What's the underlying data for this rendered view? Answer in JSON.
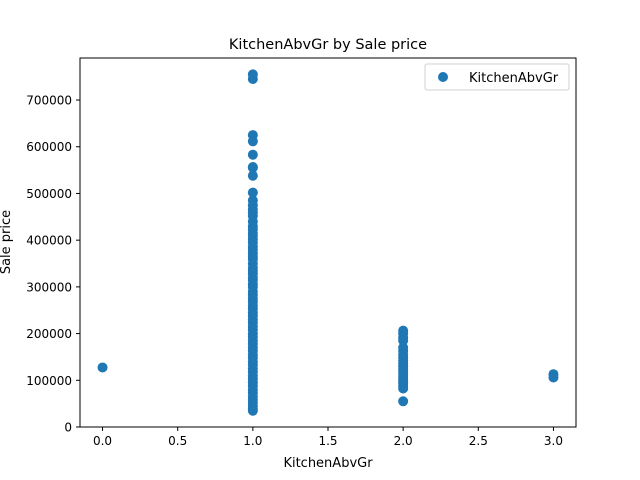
{
  "chart_data": {
    "type": "scatter",
    "title": "KitchenAbvGr by Sale price",
    "xlabel": "KitchenAbvGr",
    "ylabel": "Sale price",
    "xlim": [
      -0.15,
      3.15
    ],
    "ylim": [
      0,
      790000
    ],
    "xticks": [
      0.0,
      0.5,
      1.0,
      1.5,
      2.0,
      2.5,
      3.0
    ],
    "xtick_labels": [
      "0.0",
      "0.5",
      "1.0",
      "1.5",
      "2.0",
      "2.5",
      "3.0"
    ],
    "yticks": [
      0,
      100000,
      200000,
      300000,
      400000,
      500000,
      600000,
      700000
    ],
    "ytick_labels": [
      "0",
      "100000",
      "200000",
      "300000",
      "400000",
      "500000",
      "600000",
      "700000"
    ],
    "grid": false,
    "legend_position": "top-right",
    "series": [
      {
        "name": "KitchenAbvGr",
        "color": "#1f77b4",
        "points": [
          {
            "x": 0,
            "y": 127500
          },
          {
            "x": 1,
            "y": 755000
          },
          {
            "x": 1,
            "y": 745000
          },
          {
            "x": 1,
            "y": 625000
          },
          {
            "x": 1,
            "y": 611657
          },
          {
            "x": 1,
            "y": 582933
          },
          {
            "x": 1,
            "y": 556581
          },
          {
            "x": 1,
            "y": 555000
          },
          {
            "x": 1,
            "y": 538000
          },
          {
            "x": 1,
            "y": 501837
          },
          {
            "x": 1,
            "y": 485000
          },
          {
            "x": 1,
            "y": 475000
          },
          {
            "x": 1,
            "y": 466500
          },
          {
            "x": 1,
            "y": 460000
          },
          {
            "x": 1,
            "y": 451950
          },
          {
            "x": 1,
            "y": 440000
          },
          {
            "x": 1,
            "y": 430000
          },
          {
            "x": 1,
            "y": 423000
          },
          {
            "x": 1,
            "y": 415298
          },
          {
            "x": 1,
            "y": 410000
          },
          {
            "x": 1,
            "y": 402000
          },
          {
            "x": 1,
            "y": 395000
          },
          {
            "x": 1,
            "y": 386250
          },
          {
            "x": 1,
            "y": 380000
          },
          {
            "x": 1,
            "y": 372500
          },
          {
            "x": 1,
            "y": 365000
          },
          {
            "x": 1,
            "y": 359100
          },
          {
            "x": 1,
            "y": 350000
          },
          {
            "x": 1,
            "y": 341000
          },
          {
            "x": 1,
            "y": 335000
          },
          {
            "x": 1,
            "y": 328000
          },
          {
            "x": 1,
            "y": 320000
          },
          {
            "x": 1,
            "y": 314813
          },
          {
            "x": 1,
            "y": 306000
          },
          {
            "x": 1,
            "y": 299800
          },
          {
            "x": 1,
            "y": 290000
          },
          {
            "x": 1,
            "y": 282922
          },
          {
            "x": 1,
            "y": 275000
          },
          {
            "x": 1,
            "y": 268000
          },
          {
            "x": 1,
            "y": 260000
          },
          {
            "x": 1,
            "y": 253000
          },
          {
            "x": 1,
            "y": 245000
          },
          {
            "x": 1,
            "y": 238000
          },
          {
            "x": 1,
            "y": 230000
          },
          {
            "x": 1,
            "y": 223000
          },
          {
            "x": 1,
            "y": 215000
          },
          {
            "x": 1,
            "y": 208500
          },
          {
            "x": 1,
            "y": 200000
          },
          {
            "x": 1,
            "y": 193000
          },
          {
            "x": 1,
            "y": 185000
          },
          {
            "x": 1,
            "y": 178000
          },
          {
            "x": 1,
            "y": 170000
          },
          {
            "x": 1,
            "y": 163000
          },
          {
            "x": 1,
            "y": 155000
          },
          {
            "x": 1,
            "y": 148000
          },
          {
            "x": 1,
            "y": 140000
          },
          {
            "x": 1,
            "y": 133000
          },
          {
            "x": 1,
            "y": 125000
          },
          {
            "x": 1,
            "y": 118000
          },
          {
            "x": 1,
            "y": 110000
          },
          {
            "x": 1,
            "y": 103000
          },
          {
            "x": 1,
            "y": 95000
          },
          {
            "x": 1,
            "y": 88000
          },
          {
            "x": 1,
            "y": 80000
          },
          {
            "x": 1,
            "y": 73000
          },
          {
            "x": 1,
            "y": 65000
          },
          {
            "x": 1,
            "y": 58000
          },
          {
            "x": 1,
            "y": 52000
          },
          {
            "x": 1,
            "y": 45000
          },
          {
            "x": 1,
            "y": 39300
          },
          {
            "x": 1,
            "y": 34900
          },
          {
            "x": 2,
            "y": 206300
          },
          {
            "x": 2,
            "y": 200000
          },
          {
            "x": 2,
            "y": 191000
          },
          {
            "x": 2,
            "y": 185000
          },
          {
            "x": 2,
            "y": 170000
          },
          {
            "x": 2,
            "y": 163000
          },
          {
            "x": 2,
            "y": 155000
          },
          {
            "x": 2,
            "y": 148000
          },
          {
            "x": 2,
            "y": 142000
          },
          {
            "x": 2,
            "y": 136000
          },
          {
            "x": 2,
            "y": 130000
          },
          {
            "x": 2,
            "y": 124000
          },
          {
            "x": 2,
            "y": 118000
          },
          {
            "x": 2,
            "y": 112000
          },
          {
            "x": 2,
            "y": 106000
          },
          {
            "x": 2,
            "y": 100000
          },
          {
            "x": 2,
            "y": 94000
          },
          {
            "x": 2,
            "y": 88000
          },
          {
            "x": 2,
            "y": 82500
          },
          {
            "x": 2,
            "y": 55000
          },
          {
            "x": 3,
            "y": 113000
          },
          {
            "x": 3,
            "y": 106000
          }
        ]
      }
    ]
  }
}
